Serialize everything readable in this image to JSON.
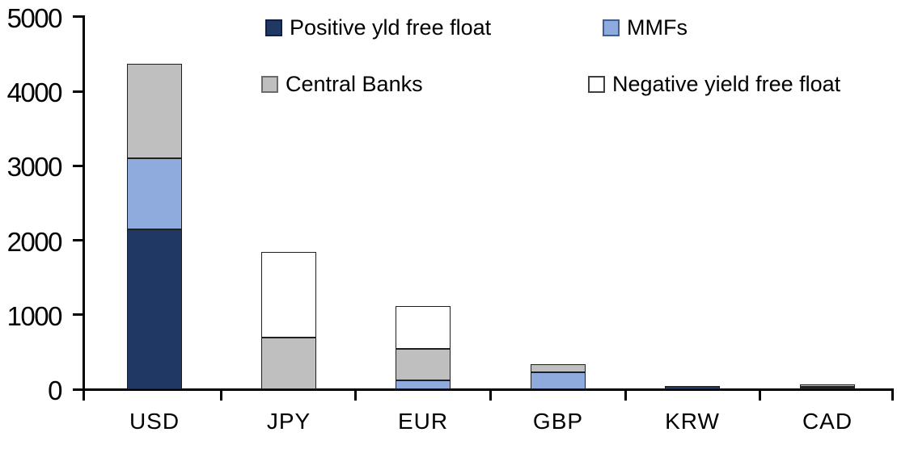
{
  "chart_data": {
    "type": "bar",
    "stacked": true,
    "title": "",
    "xlabel": "",
    "ylabel": "",
    "categories": [
      "USD",
      "JPY",
      "EUR",
      "GBP",
      "KRW",
      "CAD"
    ],
    "series": [
      {
        "name": "Positive yld free float",
        "color": "#1F3864",
        "border_color": "#141F3C",
        "values": [
          2150,
          0,
          0,
          0,
          45,
          30
        ]
      },
      {
        "name": "MMFs",
        "color": "#8FAADC",
        "border_color": "#3E5F94",
        "values": [
          950,
          0,
          120,
          230,
          0,
          10
        ]
      },
      {
        "name": "Central Banks",
        "color": "#BFBFBF",
        "border_color": "#6B6B6B",
        "values": [
          1270,
          700,
          430,
          110,
          0,
          30
        ]
      },
      {
        "name": "Negative yield free float",
        "color": "#FFFFFF",
        "border_color": "#404040",
        "values": [
          0,
          1150,
          570,
          0,
          0,
          0
        ]
      }
    ],
    "totals": [
      4370,
      1850,
      1120,
      340,
      45,
      70
    ],
    "ylim": [
      0,
      5000
    ],
    "ytick_values": [
      0,
      1000,
      2000,
      3000,
      4000,
      5000
    ],
    "ytick_labels": [
      "0",
      "1000",
      "2000",
      "3000",
      "4000",
      "5000"
    ],
    "legend_position": "top",
    "grid": false,
    "axis_color": "#000000"
  }
}
